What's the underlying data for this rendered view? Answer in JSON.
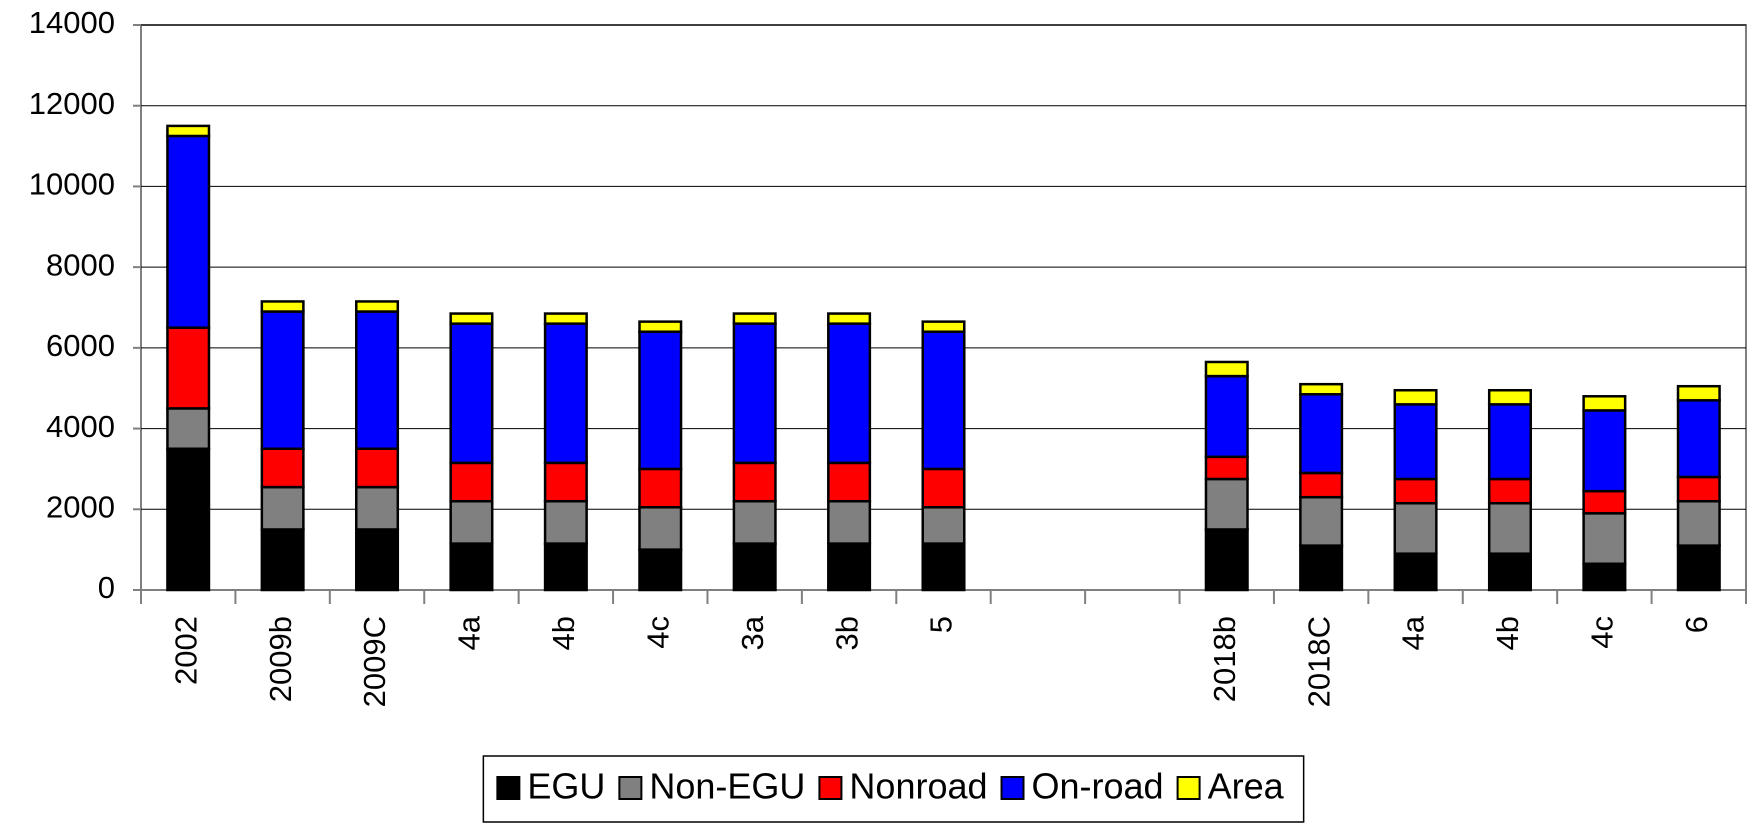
{
  "chart_data": {
    "type": "bar",
    "stacked": true,
    "categories": [
      "2002",
      "2009b",
      "2009C",
      "4a",
      "4b",
      "4c",
      "3a",
      "3b",
      "5",
      null,
      "2018b",
      "2018C",
      "4a",
      "4b",
      "4c",
      "6"
    ],
    "series": [
      {
        "name": "EGU",
        "color": "#000000",
        "values": [
          3500,
          1500,
          1500,
          1150,
          1150,
          1000,
          1150,
          1150,
          1150,
          null,
          1500,
          1100,
          900,
          900,
          650,
          1100
        ]
      },
      {
        "name": "Non-EGU",
        "color": "#808080",
        "values": [
          1000,
          1050,
          1050,
          1050,
          1050,
          1050,
          1050,
          1050,
          900,
          null,
          1250,
          1200,
          1250,
          1250,
          1250,
          1100
        ]
      },
      {
        "name": "Nonroad",
        "color": "#ff0000",
        "values": [
          2000,
          950,
          950,
          950,
          950,
          950,
          950,
          950,
          950,
          null,
          550,
          600,
          600,
          600,
          550,
          600
        ]
      },
      {
        "name": "On-road",
        "color": "#0000ff",
        "values": [
          4750,
          3400,
          3400,
          3450,
          3450,
          3400,
          3450,
          3450,
          3400,
          null,
          2000,
          1950,
          1850,
          1850,
          2000,
          1900
        ]
      },
      {
        "name": "Area",
        "color": "#ffff00",
        "values": [
          250,
          250,
          250,
          250,
          250,
          250,
          250,
          250,
          250,
          null,
          350,
          250,
          350,
          350,
          350,
          350
        ]
      }
    ],
    "ylim": [
      0,
      14000
    ],
    "yticks": [
      0,
      2000,
      4000,
      6000,
      8000,
      10000,
      12000,
      14000
    ],
    "grid": true,
    "legend": "bottom"
  }
}
